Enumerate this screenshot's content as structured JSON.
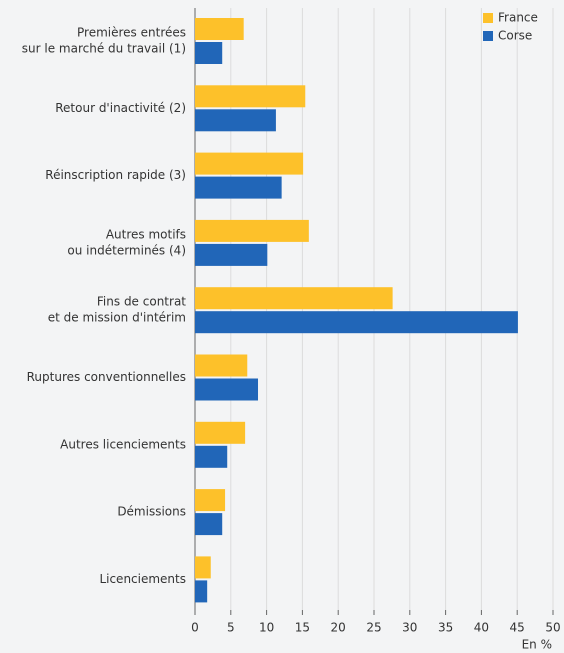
{
  "chart_data": {
    "type": "barh",
    "categories": [
      [
        "Premières entrées",
        "sur le marché du travail (1)"
      ],
      [
        "Retour d'inactivité (2)"
      ],
      [
        "Réinscription rapide (3)"
      ],
      [
        "Autres motifs",
        "ou indéterminés (4)"
      ],
      [
        "Fins de contrat",
        "et de mission d'intérim"
      ],
      [
        "Ruptures conventionnelles"
      ],
      [
        "Autres licenciements"
      ],
      [
        "Démissions"
      ],
      [
        "Licenciements"
      ]
    ],
    "series": [
      {
        "name": "France",
        "color": "#fdc12a",
        "values": [
          6.8,
          15.4,
          15.1,
          15.9,
          27.6,
          7.3,
          7.0,
          4.2,
          2.2
        ]
      },
      {
        "name": "Corse",
        "color": "#2166b8",
        "values": [
          3.8,
          11.3,
          12.1,
          10.1,
          45.1,
          8.8,
          4.5,
          3.8,
          1.7
        ]
      }
    ],
    "xlabel": "En %",
    "xlim": [
      0,
      50
    ],
    "xticks": [
      0,
      5,
      10,
      15,
      20,
      25,
      30,
      35,
      40,
      45,
      50
    ],
    "grid": true,
    "legend": "top-right"
  }
}
